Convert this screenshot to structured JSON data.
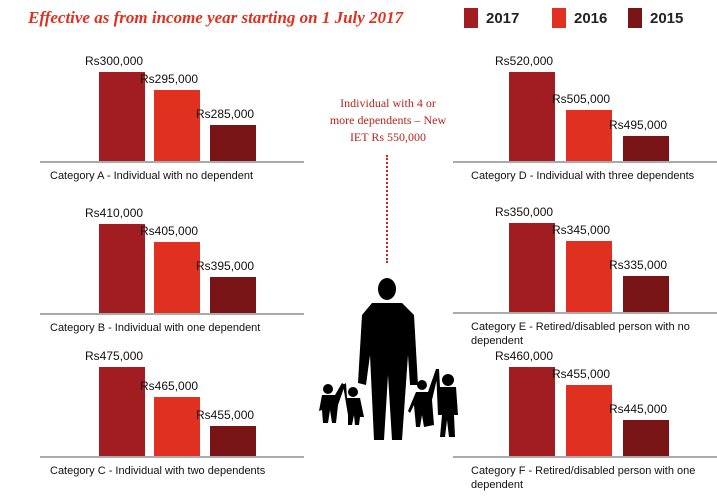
{
  "title": "Effective as from income year starting on 1 July 2017",
  "colors": {
    "2017": "#a11d21",
    "2016": "#e03020",
    "2015": "#7a1517",
    "accent": "#e0301e"
  },
  "note": "Individual with 4 or more dependents – New IET Rs 550,000",
  "chart_data": {
    "type": "bar",
    "title": "Effective as from income year starting on 1 July 2017",
    "legend": [
      "2017",
      "2016",
      "2015"
    ],
    "legend_position": "top-right",
    "grid": false,
    "panels": [
      {
        "category": "Category A - Individual with no dependent",
        "values": [
          300000,
          295000,
          285000
        ],
        "labels": [
          "Rs300,000",
          "Rs295,000",
          "Rs285,000"
        ]
      },
      {
        "category": "Category B - Individual with one dependent",
        "values": [
          410000,
          405000,
          395000
        ],
        "labels": [
          "Rs410,000",
          "Rs405,000",
          "Rs395,000"
        ]
      },
      {
        "category": "Category C - Individual with two dependents",
        "values": [
          475000,
          465000,
          455000
        ],
        "labels": [
          "Rs475,000",
          "Rs465,000",
          "Rs455,000"
        ]
      },
      {
        "category": "Category D - Individual with three dependents",
        "values": [
          520000,
          505000,
          495000
        ],
        "labels": [
          "Rs520,000",
          "Rs505,000",
          "Rs495,000"
        ]
      },
      {
        "category": "Category E - Retired/disabled person with no dependent",
        "values": [
          350000,
          345000,
          335000
        ],
        "labels": [
          "Rs350,000",
          "Rs345,000",
          "Rs335,000"
        ]
      },
      {
        "category": "Category F - Retired/disabled person with one dependent",
        "values": [
          460000,
          455000,
          445000
        ],
        "labels": [
          "Rs460,000",
          "Rs455,000",
          "Rs445,000"
        ]
      }
    ]
  }
}
